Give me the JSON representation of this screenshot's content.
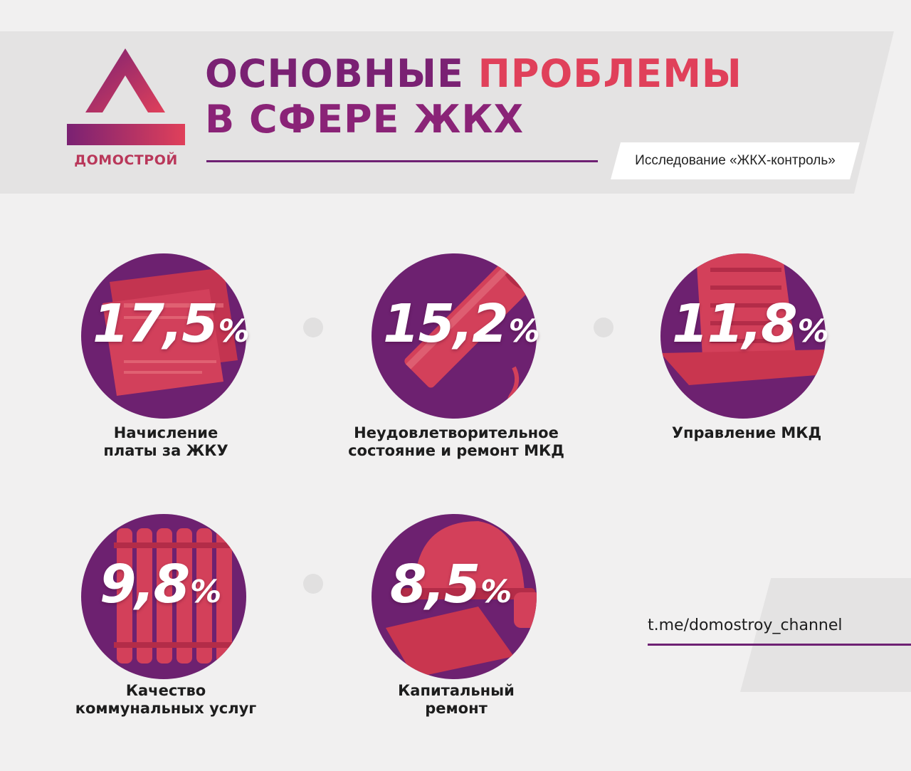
{
  "header": {
    "logo_text": "ДОМОСТРОЙ",
    "title_line1_part1": "ОСНОВНЫЕ ",
    "title_line1_part2": "ПРОБЛЕМЫ",
    "title_line2": "В СФЕРЕ ЖКХ",
    "source": "Исследование «ЖКХ-контроль»"
  },
  "items": [
    {
      "value": "17,5",
      "unit": "%",
      "label_line1": "Начисление",
      "label_line2": "платы за ЖКУ",
      "icon": "money-bills-icon"
    },
    {
      "value": "15,2",
      "unit": "%",
      "label_line1": "Неудовлетворительное",
      "label_line2": "состояние и ремонт МКД",
      "icon": "broken-pipe-icon"
    },
    {
      "value": "11,8",
      "unit": "%",
      "label_line1": "Управление МКД",
      "label_line2": "",
      "icon": "apartment-building-icon"
    },
    {
      "value": "9,8",
      "unit": "%",
      "label_line1": "Качество",
      "label_line2": "коммунальных услуг",
      "icon": "radiator-icon"
    },
    {
      "value": "8,5",
      "unit": "%",
      "label_line1": "Капитальный",
      "label_line2": "ремонт",
      "icon": "hard-hat-icon"
    }
  ],
  "footer": {
    "channel": "t.me/domostroy_channel"
  },
  "colors": {
    "accent_purple": "#6d2170",
    "accent_red": "#e0405a"
  }
}
